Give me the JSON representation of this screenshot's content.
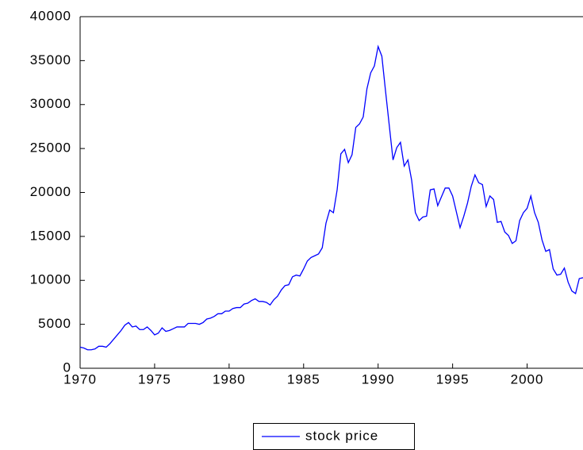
{
  "chart_data": {
    "type": "line",
    "x": [
      1970,
      1970.25,
      1970.5,
      1970.75,
      1971,
      1971.25,
      1971.5,
      1971.75,
      1972,
      1972.25,
      1972.5,
      1972.75,
      1973,
      1973.25,
      1973.5,
      1973.75,
      1974,
      1974.25,
      1974.5,
      1974.75,
      1975,
      1975.25,
      1975.5,
      1975.75,
      1976,
      1976.25,
      1976.5,
      1976.75,
      1977,
      1977.25,
      1977.5,
      1977.75,
      1978,
      1978.25,
      1978.5,
      1978.75,
      1979,
      1979.25,
      1979.5,
      1979.75,
      1980,
      1980.25,
      1980.5,
      1980.75,
      1981,
      1981.25,
      1981.5,
      1981.75,
      1982,
      1982.25,
      1982.5,
      1982.75,
      1983,
      1983.25,
      1983.5,
      1983.75,
      1984,
      1984.25,
      1984.5,
      1984.75,
      1985,
      1985.25,
      1985.5,
      1985.75,
      1986,
      1986.25,
      1986.5,
      1986.75,
      1987,
      1987.25,
      1987.5,
      1987.75,
      1988,
      1988.25,
      1988.5,
      1988.75,
      1989,
      1989.25,
      1989.5,
      1989.75,
      1990,
      1990.25,
      1990.5,
      1990.75,
      1991,
      1991.25,
      1991.5,
      1991.75,
      1992,
      1992.25,
      1992.5,
      1992.75,
      1993,
      1993.25,
      1993.5,
      1993.75,
      1994,
      1994.25,
      1994.5,
      1994.75,
      1995,
      1995.25,
      1995.5,
      1995.75,
      1996,
      1996.25,
      1996.5,
      1996.75,
      1997,
      1997.25,
      1997.5,
      1997.75,
      1998,
      1998.25,
      1998.5,
      1998.75,
      1999,
      1999.25,
      1999.5,
      1999.75,
      2000,
      2000.25,
      2000.5,
      2000.75,
      2001,
      2001.25,
      2001.5,
      2001.75,
      2002,
      2002.25,
      2002.5,
      2002.75,
      2003,
      2003.25,
      2003.5,
      2003.75
    ],
    "series": [
      {
        "name": "stock price",
        "color": "#0000ff",
        "values": [
          2400,
          2300,
          2100,
          2100,
          2200,
          2500,
          2500,
          2400,
          2800,
          3300,
          3800,
          4300,
          4900,
          5200,
          4700,
          4800,
          4400,
          4400,
          4700,
          4300,
          3800,
          4000,
          4600,
          4200,
          4300,
          4500,
          4700,
          4700,
          4700,
          5100,
          5100,
          5100,
          5000,
          5200,
          5600,
          5700,
          5900,
          6200,
          6200,
          6500,
          6500,
          6800,
          6900,
          6900,
          7300,
          7400,
          7700,
          7900,
          7600,
          7600,
          7500,
          7200,
          7800,
          8200,
          8900,
          9400,
          9500,
          10400,
          10600,
          10500,
          11300,
          12200,
          12600,
          12800,
          13000,
          13700,
          16500,
          18000,
          17700,
          20300,
          24400,
          24900,
          23400,
          24300,
          27400,
          27800,
          28600,
          31800,
          33600,
          34400,
          36600,
          35500,
          31500,
          27600,
          23700,
          25100,
          25700,
          23000,
          23700,
          21400,
          17700,
          16800,
          17200,
          17300,
          20300,
          20400,
          18500,
          19500,
          20500,
          20500,
          19600,
          17800,
          16000,
          17300,
          18800,
          20700,
          22000,
          21100,
          20900,
          18400,
          19600,
          19200,
          16600,
          16700,
          15500,
          15100,
          14200,
          14500,
          16800,
          17700,
          18200,
          19600,
          17700,
          16600,
          14600,
          13300,
          13500,
          11300,
          10600,
          10700,
          11400,
          9800,
          8800,
          8500,
          10200,
          10300
        ]
      }
    ],
    "xlim": [
      1970,
      2003.75
    ],
    "xticks": [
      1970,
      1975,
      1980,
      1985,
      1990,
      1995,
      2000
    ],
    "ylim": [
      0,
      40000
    ],
    "yticks": [
      0,
      5000,
      10000,
      15000,
      20000,
      25000,
      30000,
      35000,
      40000
    ],
    "legend": "bottom"
  }
}
